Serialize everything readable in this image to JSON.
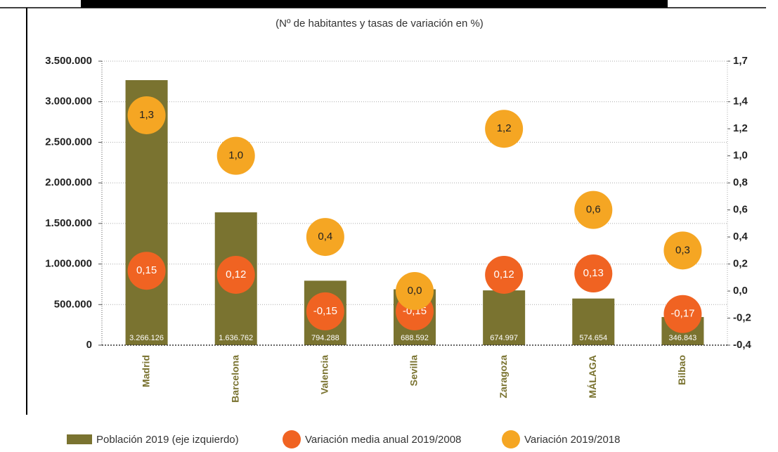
{
  "chart_data": {
    "type": "bar_dots",
    "subtitle": "(Nº de habitantes y tasas de variación en %)",
    "categories": [
      "Madrid",
      "Barcelona",
      "Valencia",
      "Sevilla",
      "Zaragoza",
      "MÁLAGA",
      "Bilbao"
    ],
    "series": [
      {
        "name": "Población 2019 (eje izquierdo)",
        "color": "#7a7330",
        "values": [
          3266126,
          1636762,
          794288,
          688592,
          674997,
          574654,
          346843
        ],
        "value_labels": [
          "3.266.126",
          "1.636.762",
          "794.288",
          "688.592",
          "674.997",
          "574.654",
          "346.843"
        ]
      },
      {
        "name": "Variación media anual 2019/2008",
        "color": "#f06322",
        "axis": "y2",
        "values": [
          0.15,
          0.12,
          -0.15,
          -0.15,
          0.12,
          0.13,
          -0.17
        ],
        "value_labels": [
          "0,15",
          "0,12",
          "-0,15",
          "-0,15",
          "0,12",
          "0,13",
          "-0,17"
        ]
      },
      {
        "name": "Variación 2019/2018",
        "color": "#f5a623",
        "axis": "y2",
        "values": [
          1.3,
          1.0,
          0.4,
          0.0,
          1.2,
          0.6,
          0.3
        ],
        "value_labels": [
          "1,3",
          "1,0",
          "0,4",
          "0,0",
          "1,2",
          "0,6",
          "0,3"
        ]
      }
    ],
    "ylim": [
      0,
      3500000
    ],
    "yticks": [
      0,
      {
        "value": 500000,
        "label": "500.000"
      },
      {
        "value": 1000000,
        "label": "1.000.000"
      },
      {
        "value": 1500000,
        "label": "1.500.000"
      },
      {
        "value": 2000000,
        "label": "2.000.000"
      },
      {
        "value": 2500000,
        "label": "2.500.000"
      },
      {
        "value": 3000000,
        "label": "3.000.000"
      },
      {
        "value": 3500000,
        "label": "3.500.000"
      }
    ],
    "y2lim": [
      -0.4,
      1.7
    ],
    "y2ticks": [
      {
        "value": -0.4,
        "label": "-0,4"
      },
      {
        "value": -0.2,
        "label": "-0,2"
      },
      {
        "value": 0,
        "label": "0,0"
      },
      {
        "value": 0.2,
        "label": "0,2"
      },
      {
        "value": 0.4,
        "label": "0,4"
      },
      {
        "value": 0.6,
        "label": "0,6"
      },
      {
        "value": 0.8,
        "label": "0,8"
      },
      {
        "value": 1.0,
        "label": "1,0"
      },
      {
        "value": 1.2,
        "label": "1,2"
      },
      {
        "value": 1.4,
        "label": "1,4"
      },
      {
        "value": 1.7,
        "label": "1,7"
      }
    ],
    "grid": true
  }
}
